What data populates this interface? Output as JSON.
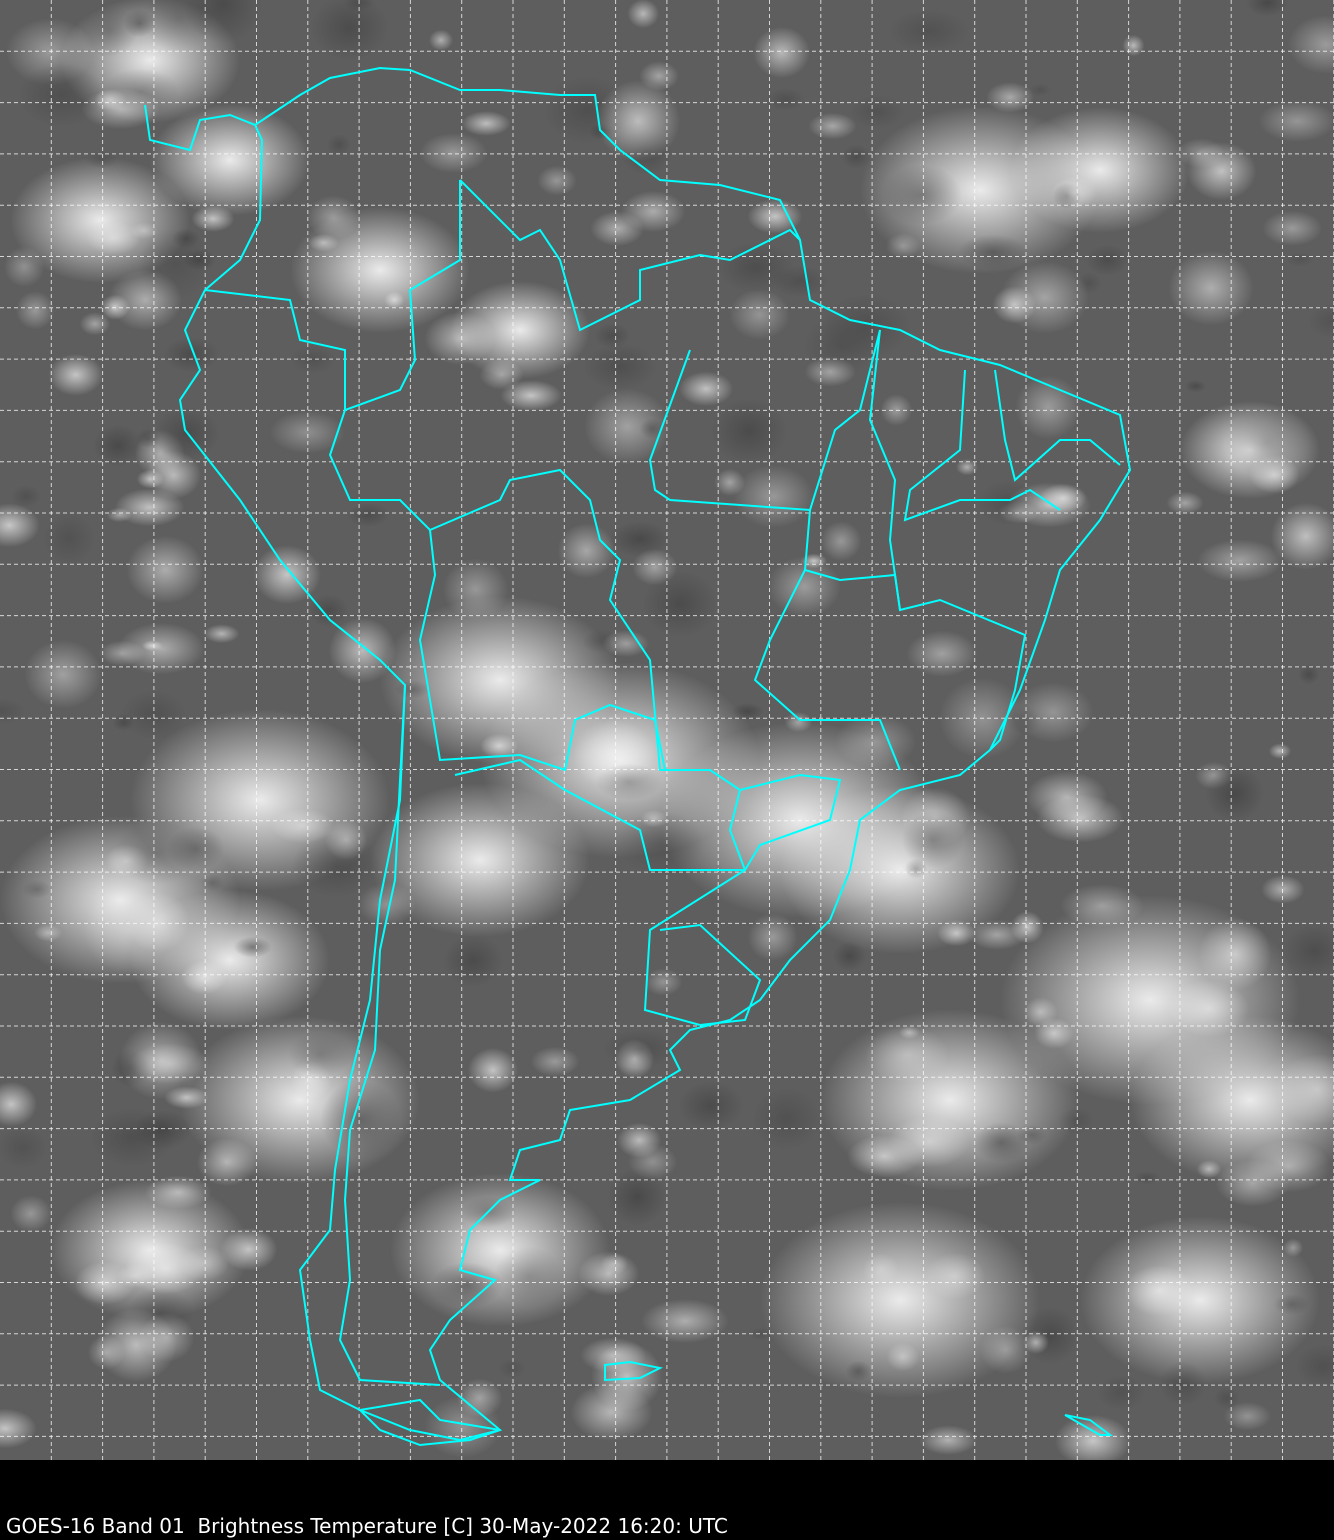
{
  "caption": "GOES-16 Band 01  Brightness Temperature [C] 30-May-2022 16:20: UTC",
  "colors": {
    "background": "#5a5a5a",
    "cloud": "#f0f0f0",
    "boundary": "#00ffff",
    "grid": "#ffffff",
    "caption_bar": "#000000"
  },
  "map": {
    "region": "South America",
    "grid": true,
    "grid_style": "dashed"
  }
}
